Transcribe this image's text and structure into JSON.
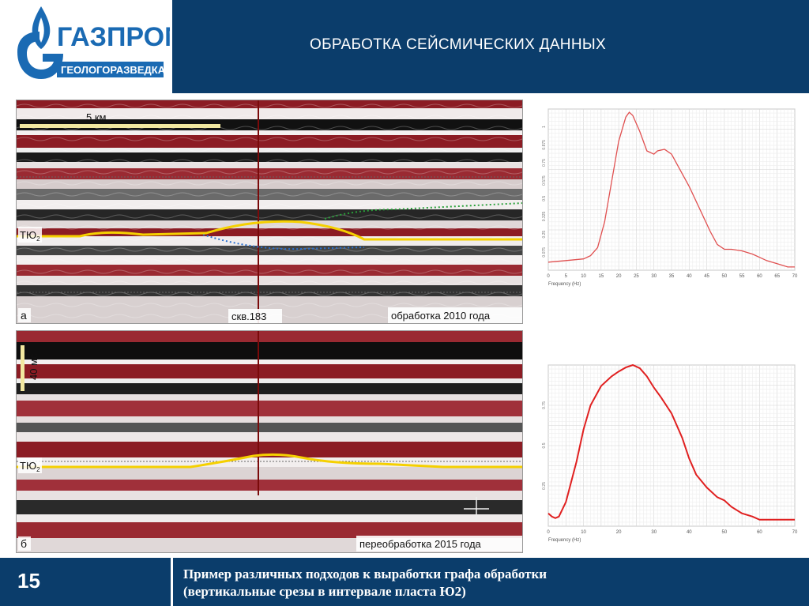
{
  "brand": {
    "name": "ГАЗПРОМ",
    "subtitle": "ГЕОЛОГОРАЗВЕДКА",
    "blue": "#1a6ab3",
    "navy": "#0b3d6b"
  },
  "slide_title": "ОБРАБОТКА  СЕЙСМИЧЕСКИХ ДАННЫХ",
  "panel_a": {
    "letter": "а",
    "scale_label": "5 км",
    "horizon_label": "ТЮ",
    "horizon_sub": "2",
    "well_label": "скв.183",
    "processing_label": "обработка 2010 года"
  },
  "panel_b": {
    "letter": "б",
    "scale_label": "40 мс",
    "horizon_label": "ТЮ",
    "horizon_sub": "2",
    "processing_label": "переобработка 2015 года"
  },
  "chart_data": [
    {
      "type": "line",
      "xlabel": "Frequency (Hz)",
      "xlim": [
        0,
        70
      ],
      "ylim": [
        0,
        1
      ],
      "grid": true,
      "x_ticks": [
        0,
        5,
        10,
        15,
        20,
        25,
        30,
        35,
        40,
        45,
        50,
        55,
        60,
        65,
        70
      ],
      "y_ticks": [
        "0.075",
        "0.25",
        "0.325",
        "0.5",
        "0.575",
        "0.75",
        "0.875",
        "1"
      ],
      "color": "#e05050",
      "series": [
        {
          "x": [
            0,
            5,
            10,
            12,
            14,
            16,
            18,
            20,
            22,
            23,
            24,
            26,
            28,
            30,
            31,
            33,
            35,
            37,
            40,
            43,
            46,
            48,
            50,
            52,
            55,
            58,
            60,
            62,
            65,
            68,
            70
          ],
          "y": [
            0.05,
            0.06,
            0.07,
            0.09,
            0.14,
            0.3,
            0.55,
            0.8,
            0.95,
            0.98,
            0.96,
            0.86,
            0.74,
            0.72,
            0.74,
            0.75,
            0.72,
            0.64,
            0.52,
            0.38,
            0.24,
            0.16,
            0.13,
            0.13,
            0.12,
            0.1,
            0.08,
            0.06,
            0.04,
            0.02,
            0.02
          ]
        }
      ]
    },
    {
      "type": "line",
      "xlabel": "Frequency (Hz)",
      "xlim": [
        0,
        70
      ],
      "ylim": [
        0,
        1
      ],
      "grid": true,
      "x_ticks": [
        0,
        10,
        20,
        30,
        40,
        50,
        60,
        70
      ],
      "y_ticks": [
        "0.25",
        "0.5",
        "0.75"
      ],
      "color": "#e02020",
      "series": [
        {
          "x": [
            0,
            1,
            2,
            3,
            5,
            8,
            10,
            12,
            15,
            18,
            20,
            22,
            24,
            26,
            28,
            30,
            32,
            35,
            38,
            40,
            42,
            45,
            48,
            50,
            52,
            55,
            58,
            60,
            62,
            65,
            68,
            70
          ],
          "y": [
            0.08,
            0.06,
            0.05,
            0.06,
            0.15,
            0.4,
            0.6,
            0.75,
            0.87,
            0.93,
            0.96,
            0.985,
            1.0,
            0.98,
            0.93,
            0.86,
            0.8,
            0.7,
            0.55,
            0.42,
            0.32,
            0.24,
            0.18,
            0.16,
            0.12,
            0.08,
            0.06,
            0.04,
            0.04,
            0.04,
            0.04,
            0.04
          ]
        }
      ]
    }
  ],
  "footer": {
    "page_number": "15",
    "caption_line1": "Пример различных подходов к выработки графа обработки",
    "caption_line2": "(вертикальные срезы в интервале пласта Ю2)"
  }
}
